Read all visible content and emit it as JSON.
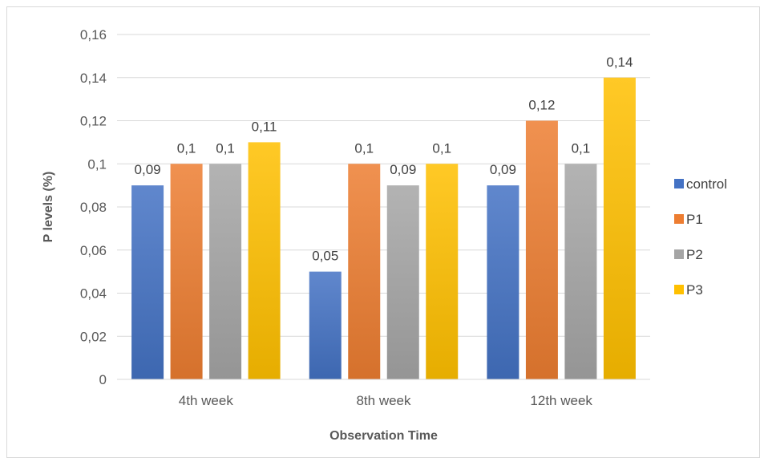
{
  "chart_data": {
    "type": "bar",
    "title": "",
    "xlabel": "Observation Time",
    "ylabel": "P levels (%)",
    "categories": [
      "4th week",
      "8th week",
      "12th week"
    ],
    "series": [
      {
        "name": "control",
        "values": [
          0.09,
          0.05,
          0.09
        ],
        "labels": [
          "0,09",
          "0,05",
          "0,09"
        ],
        "color": "#4472C4"
      },
      {
        "name": "P1",
        "values": [
          0.1,
          0.1,
          0.12
        ],
        "labels": [
          "0,1",
          "0,1",
          "0,12"
        ],
        "color": "#ED7D31"
      },
      {
        "name": "P2",
        "values": [
          0.1,
          0.09,
          0.1
        ],
        "labels": [
          "0,1",
          "0,09",
          "0,1"
        ],
        "color": "#A5A5A5"
      },
      {
        "name": "P3",
        "values": [
          0.11,
          0.1,
          0.14
        ],
        "labels": [
          "0,11",
          "0,1",
          "0,14"
        ],
        "color": "#FFC000"
      }
    ],
    "ylim": [
      0,
      0.16
    ],
    "yticks": [
      0,
      0.02,
      0.04,
      0.06,
      0.08,
      0.1,
      0.12,
      0.14,
      0.16
    ],
    "ytick_labels": [
      "0",
      "0,02",
      "0,04",
      "0,06",
      "0,08",
      "0,1",
      "0,12",
      "0,14",
      "0,16"
    ],
    "grid": true,
    "legend_position": "right"
  }
}
